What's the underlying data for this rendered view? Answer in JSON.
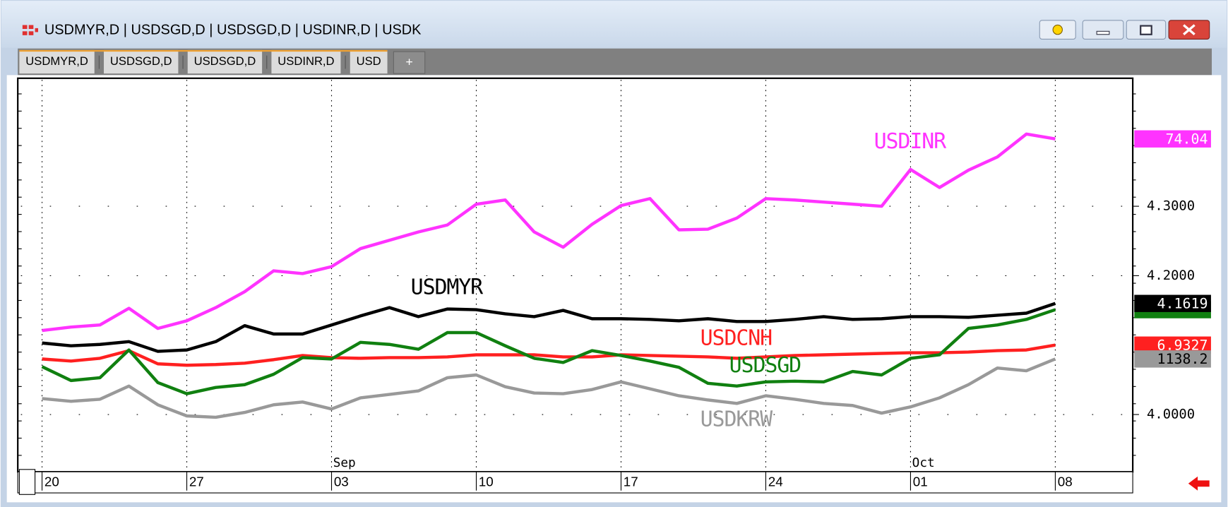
{
  "window": {
    "title": "USDMYR,D  |  USDSGD,D  |  USDSGD,D  |  USDINR,D  |  USDK",
    "tabs": [
      "USDMYR,D",
      "USDSGD,D",
      "USDSGD,D",
      "USDINR,D",
      "USD"
    ],
    "new_tab": "+"
  },
  "chart_data": {
    "type": "line",
    "categories": [
      "20",
      null,
      null,
      null,
      null,
      "27",
      null,
      null,
      null,
      null,
      "03",
      null,
      null,
      null,
      null,
      "10",
      null,
      null,
      null,
      null,
      "17",
      null,
      null,
      null,
      null,
      "24",
      null,
      null,
      null,
      null,
      "01",
      null,
      null,
      null,
      null,
      "08"
    ],
    "months": [
      null,
      null,
      null,
      null,
      null,
      null,
      null,
      null,
      null,
      null,
      "Sep",
      null,
      null,
      null,
      null,
      null,
      null,
      null,
      null,
      null,
      null,
      null,
      null,
      null,
      null,
      null,
      null,
      null,
      null,
      null,
      "Oct",
      null,
      null,
      null,
      null,
      null
    ],
    "ylim": [
      3.9175,
      4.4844
    ],
    "yticks": [
      {
        "value": 4.0,
        "label": "4.0000"
      },
      {
        "value": 4.2,
        "label": "4.2000"
      },
      {
        "value": 4.3,
        "label": "4.3000"
      }
    ],
    "grid": true,
    "series": [
      {
        "name": "USDINR",
        "color": "#ff33ff",
        "last_label": "74.04",
        "values": [
          4.121,
          4.126,
          4.129,
          4.153,
          4.124,
          4.135,
          4.154,
          4.177,
          4.207,
          4.203,
          4.213,
          4.239,
          4.251,
          4.263,
          4.273,
          4.303,
          4.309,
          4.263,
          4.241,
          4.274,
          4.301,
          4.311,
          4.266,
          4.267,
          4.283,
          4.311,
          4.309,
          4.306,
          4.303,
          4.3,
          4.353,
          4.327,
          4.352,
          4.371,
          4.404,
          4.397
        ]
      },
      {
        "name": "USDMYR",
        "color": "#000000",
        "last_label": "4.1619",
        "values": [
          4.103,
          4.099,
          4.101,
          4.105,
          4.091,
          4.093,
          4.105,
          4.128,
          4.116,
          4.116,
          4.129,
          4.142,
          4.154,
          4.141,
          4.152,
          4.151,
          4.145,
          4.141,
          4.15,
          4.138,
          4.138,
          4.137,
          4.135,
          4.138,
          4.134,
          4.134,
          4.137,
          4.141,
          4.137,
          4.138,
          4.141,
          4.141,
          4.14,
          4.143,
          4.146,
          4.16
        ]
      },
      {
        "name": "USDCNH",
        "color": "#ff2020",
        "last_label": "6.9327",
        "values": [
          4.08,
          4.077,
          4.081,
          4.092,
          4.073,
          4.071,
          4.072,
          4.074,
          4.079,
          4.085,
          4.082,
          4.081,
          4.082,
          4.082,
          4.083,
          4.086,
          4.086,
          4.086,
          4.083,
          4.083,
          4.086,
          4.085,
          4.084,
          4.083,
          4.081,
          4.083,
          4.085,
          4.086,
          4.087,
          4.088,
          4.089,
          4.089,
          4.09,
          4.092,
          4.093,
          4.1
        ]
      },
      {
        "name": "USDSGD",
        "color": "#108010",
        "values": [
          4.069,
          4.049,
          4.053,
          4.093,
          4.046,
          4.03,
          4.039,
          4.043,
          4.058,
          4.082,
          4.08,
          4.104,
          4.101,
          4.094,
          4.118,
          4.118,
          4.099,
          4.081,
          4.075,
          4.092,
          4.085,
          4.077,
          4.068,
          4.045,
          4.041,
          4.047,
          4.048,
          4.047,
          4.062,
          4.057,
          4.081,
          4.086,
          4.124,
          4.129,
          4.137,
          4.151
        ]
      },
      {
        "name": "USDKRW",
        "color": "#999999",
        "last_label": "1138.2",
        "values": [
          4.023,
          4.019,
          4.022,
          4.041,
          4.014,
          3.998,
          3.996,
          4.003,
          4.014,
          4.018,
          4.008,
          4.024,
          4.029,
          4.034,
          4.053,
          4.057,
          4.04,
          4.031,
          4.03,
          4.036,
          4.047,
          4.037,
          4.027,
          4.021,
          4.016,
          4.027,
          4.022,
          4.016,
          4.013,
          4.002,
          4.011,
          4.024,
          4.043,
          4.067,
          4.063,
          4.08
        ]
      }
    ]
  }
}
